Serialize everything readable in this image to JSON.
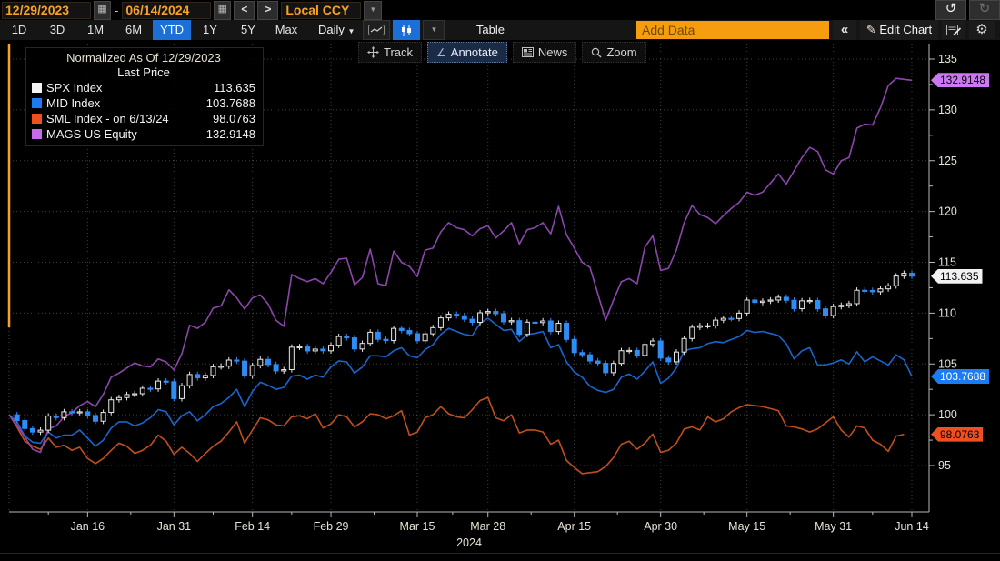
{
  "toolbar": {
    "date_from": "12/29/2023",
    "date_separator": "-",
    "date_to": "06/14/2024",
    "prev_label": "<",
    "next_label": ">",
    "currency": "Local CCY",
    "undo_label": "↺",
    "redo_label": "↻",
    "range_tabs": [
      "1D",
      "3D",
      "1M",
      "6M",
      "YTD",
      "1Y",
      "5Y",
      "Max"
    ],
    "active_range": "YTD",
    "period": "Daily",
    "period_caret": "▼",
    "dropdown_caret": "▼",
    "calendar_glyph": "▦",
    "table_label": "Table",
    "add_data_placeholder": "Add Data",
    "collapse_label": "«",
    "edit_chart_pencil": "✎",
    "edit_chart_label": "Edit Chart",
    "gear_glyph": "⚙"
  },
  "chart_toolbar": {
    "track_label": "Track",
    "annotate_label": "Annotate",
    "news_label": "News",
    "zoom_label": "Zoom",
    "active": "Annotate",
    "annotate_glyph": "∠"
  },
  "legend": {
    "title": "Normalized As Of 12/29/2023",
    "subtitle": "Last Price",
    "items": [
      {
        "label": "SPX Index",
        "value": "113.635",
        "color": "#f2f2f2"
      },
      {
        "label": "MID Index",
        "value": "103.7688",
        "color": "#1b7bf5"
      },
      {
        "label": "SML Index -  on 6/13/24",
        "value": "98.0763",
        "color": "#f0501e"
      },
      {
        "label": "MAGS US Equity",
        "value": "132.9148",
        "color": "#c86aec"
      }
    ]
  },
  "chart_data": {
    "type": "line+candlestick",
    "title": "Normalized As Of 12/29/2023",
    "normalize_base": 100,
    "x_axis": {
      "year_label": "2024",
      "total_days": 115,
      "ticks": [
        {
          "day": 10,
          "label": "Jan 16"
        },
        {
          "day": 21,
          "label": "Jan 31"
        },
        {
          "day": 31,
          "label": "Feb 14"
        },
        {
          "day": 41,
          "label": "Feb 29"
        },
        {
          "day": 52,
          "label": "Mar 15"
        },
        {
          "day": 61,
          "label": "Mar 28"
        },
        {
          "day": 72,
          "label": "Apr 15"
        },
        {
          "day": 83,
          "label": "Apr 30"
        },
        {
          "day": 94,
          "label": "May 15"
        },
        {
          "day": 105,
          "label": "May 31"
        },
        {
          "day": 115,
          "label": "Jun 14"
        }
      ]
    },
    "y_axis": {
      "min": 95,
      "max": 135,
      "tick_step": 5,
      "minor_step": 2.5,
      "ticks": [
        95,
        100,
        105,
        110,
        115,
        120,
        125,
        130,
        135
      ]
    },
    "grid": "dotted",
    "colors": {
      "candle_up": "#e8e8e8",
      "candle_down": "#2e8cf5",
      "mid_line": "#1766cf",
      "sml_line": "#c14f1d",
      "mags_line": "#8c46ad",
      "start_marker": "#f7a227",
      "axis": "#b8b8b8",
      "grid": "#9a9a9a"
    },
    "series": [
      {
        "name": "SPX Index",
        "type": "candlestick",
        "start_value": 100,
        "last": 113.635,
        "closes": [
          99.43,
          98.64,
          98.3,
          98.48,
          99.87,
          99.72,
          100.29,
          100.22,
          100.29,
          99.92,
          99.36,
          100.23,
          101.47,
          101.69,
          101.99,
          102.07,
          102.61,
          102.54,
          103.31,
          103.25,
          101.59,
          102.86,
          103.96,
          103.63,
          103.87,
          104.72,
          104.78,
          105.38,
          105.28,
          103.84,
          104.84,
          105.45,
          104.94,
          104.31,
          104.44,
          106.65,
          106.69,
          106.28,
          106.46,
          106.29,
          106.84,
          107.7,
          107.57,
          106.47,
          107.02,
          108.12,
          107.42,
          107.3,
          108.5,
          108.29,
          107.98,
          107.28,
          107.96,
          108.57,
          109.53,
          109.89,
          109.74,
          109.4,
          109.09,
          110.03,
          110.16,
          109.94,
          109.14,
          109.26,
          107.91,
          109.11,
          109.07,
          109.23,
          108.19,
          109.0,
          107.41,
          106.12,
          105.9,
          105.29,
          105.06,
          104.14,
          105.05,
          106.3,
          106.33,
          105.84,
          106.92,
          107.26,
          105.57,
          105.21,
          106.17,
          107.5,
          108.61,
          108.76,
          108.76,
          109.31,
          109.49,
          109.47,
          110.0,
          111.29,
          111.05,
          111.18,
          111.29,
          111.56,
          111.26,
          110.44,
          111.21,
          111.24,
          110.42,
          109.76,
          110.64,
          110.77,
          110.93,
          112.25,
          112.23,
          112.1,
          112.39,
          112.69,
          113.65,
          113.92,
          113.635
        ]
      },
      {
        "name": "MID Index",
        "type": "line",
        "last": 103.7688,
        "values": [
          100,
          99.3,
          97.9,
          97.3,
          97.2,
          98.3,
          97.7,
          98.0,
          98.0,
          98.5,
          97.7,
          96.9,
          97.5,
          98.7,
          99.3,
          99.3,
          98.9,
          99.2,
          99.7,
          100.5,
          100.3,
          99.0,
          99.9,
          100.3,
          99.4,
          100.0,
          100.8,
          101.1,
          101.7,
          102.5,
          100.8,
          102.3,
          103.2,
          102.9,
          102.5,
          102.7,
          103.8,
          103.9,
          103.5,
          103.9,
          103.7,
          104.7,
          105.3,
          105.2,
          104.1,
          104.7,
          105.8,
          105.8,
          105.7,
          106.3,
          106.6,
          105.8,
          105.6,
          106.4,
          106.9,
          107.9,
          108.5,
          108.2,
          107.9,
          107.8,
          109.0,
          109.5,
          108.9,
          108.3,
          108.4,
          107.2,
          107.9,
          108.0,
          108.2,
          106.6,
          106.9,
          105.2,
          104.2,
          103.7,
          102.8,
          102.4,
          102.2,
          102.5,
          103.7,
          104.0,
          103.5,
          104.3,
          105.2,
          103.1,
          103.6,
          104.6,
          106.3,
          106.5,
          106.6,
          107.0,
          107.2,
          107.1,
          107.4,
          107.7,
          108.3,
          108.1,
          108.2,
          108.0,
          107.8,
          107.0,
          105.5,
          106.3,
          106.6,
          104.9,
          104.9,
          105.1,
          105.4,
          105.0,
          106.2,
          105.2,
          105.7,
          105.3,
          104.9,
          105.9,
          105.4,
          103.7688
        ]
      },
      {
        "name": "SML Index",
        "type": "line",
        "last": 98.0763,
        "note": "on 6/13/24",
        "values": [
          100,
          98.8,
          97.4,
          96.9,
          96.6,
          97.7,
          96.8,
          97.0,
          96.5,
          96.8,
          95.7,
          95.2,
          95.7,
          96.5,
          97.2,
          96.9,
          96.2,
          96.5,
          97.0,
          98.0,
          97.4,
          96.1,
          96.8,
          96.2,
          95.4,
          96.2,
          96.9,
          97.4,
          98.3,
          99.3,
          97.2,
          98.5,
          99.7,
          99.5,
          99.0,
          98.9,
          99.8,
          99.9,
          99.6,
          100.1,
          98.7,
          99.1,
          100.0,
          99.8,
          98.8,
          99.3,
          100.1,
          100.0,
          99.6,
          99.9,
          100.4,
          98.0,
          98.3,
          99.7,
          100.0,
          100.8,
          100.1,
          99.8,
          99.7,
          100.5,
          101.4,
          101.7,
          99.7,
          99.4,
          100.0,
          98.2,
          98.5,
          98.5,
          98.3,
          97.1,
          97.5,
          95.5,
          94.8,
          94.2,
          94.3,
          94.4,
          94.9,
          95.8,
          97.1,
          97.4,
          96.6,
          97.2,
          98.1,
          96.3,
          96.5,
          97.2,
          98.6,
          98.8,
          98.5,
          99.8,
          99.3,
          99.6,
          100.3,
          100.7,
          101.0,
          100.9,
          100.8,
          100.6,
          100.4,
          98.9,
          98.8,
          98.6,
          98.3,
          98.6,
          99.2,
          99.8,
          98.5,
          97.8,
          98.9,
          98.7,
          97.5,
          97.1,
          96.4,
          97.9,
          98.0763
        ]
      },
      {
        "name": "MAGS US Equity",
        "type": "line",
        "last": 132.9148,
        "values": [
          100,
          99.0,
          97.8,
          96.6,
          96.3,
          98.6,
          98.9,
          99.8,
          100.2,
          100.9,
          101.3,
          100.8,
          102.0,
          103.7,
          104.1,
          104.6,
          105.1,
          104.8,
          104.7,
          105.5,
          105.2,
          104.4,
          106.0,
          108.8,
          108.5,
          109.1,
          110.5,
          110.7,
          112.3,
          111.5,
          110.4,
          111.5,
          111.8,
          110.9,
          109.3,
          108.7,
          113.8,
          113.4,
          113.1,
          113.4,
          112.9,
          114.0,
          115.3,
          115.4,
          112.8,
          113.5,
          116.3,
          112.9,
          112.7,
          116.1,
          115.0,
          114.6,
          113.6,
          116.2,
          116.4,
          118.0,
          118.9,
          118.4,
          118.2,
          117.6,
          118.3,
          118.6,
          117.4,
          118.1,
          118.9,
          116.8,
          118.2,
          118.4,
          118.9,
          117.8,
          120.5,
          117.7,
          116.4,
          115.0,
          114.5,
          111.9,
          109.3,
          111.3,
          113.1,
          113.4,
          112.9,
          116.5,
          117.6,
          114.2,
          114.4,
          116.2,
          118.9,
          120.6,
          119.7,
          119.4,
          118.8,
          119.6,
          120.3,
          120.9,
          121.9,
          121.6,
          121.9,
          122.8,
          123.7,
          122.7,
          124.0,
          125.3,
          126.3,
          125.9,
          124.1,
          123.7,
          125.0,
          125.3,
          128.2,
          128.6,
          128.5,
          130.2,
          132.4,
          133.1,
          133.0,
          132.9148
        ]
      }
    ],
    "price_labels": [
      {
        "value": 132.9148,
        "text": "132.9148",
        "bg": "#cb78f2",
        "fg": "#000000"
      },
      {
        "value": 113.635,
        "text": "113.635",
        "bg": "#f2f2f2",
        "fg": "#000000"
      },
      {
        "value": 103.7688,
        "text": "103.7688",
        "bg": "#1b7bf5",
        "fg": "#ffffff"
      },
      {
        "value": 98.0763,
        "text": "98.0763",
        "bg": "#f04f21",
        "fg": "#000000"
      }
    ]
  }
}
